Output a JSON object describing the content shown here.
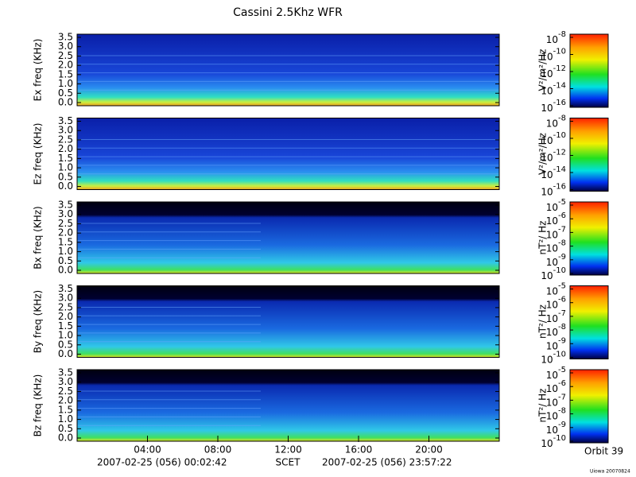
{
  "title": "Cassini 2.5Khz WFR",
  "panels": [
    {
      "ylabel": "Ex freq (KHz)",
      "yticks": [
        "0.0",
        "0.5",
        "1.0",
        "1.5",
        "2.0",
        "2.5",
        "3.0",
        "3.5"
      ],
      "unit": "V²/m²/Hz",
      "cticks": [
        {
          "base": "10",
          "exp": "-8"
        },
        {
          "base": "10",
          "exp": "-10"
        },
        {
          "base": "10",
          "exp": "-12"
        },
        {
          "base": "10",
          "exp": "-14"
        },
        {
          "base": "10",
          "exp": "-16"
        }
      ]
    },
    {
      "ylabel": "Ez freq (KHz)",
      "yticks": [
        "0.0",
        "0.5",
        "1.0",
        "1.5",
        "2.0",
        "2.5",
        "3.0",
        "3.5"
      ],
      "unit": "V²/m²/Hz",
      "cticks": [
        {
          "base": "10",
          "exp": "-8"
        },
        {
          "base": "10",
          "exp": "-10"
        },
        {
          "base": "10",
          "exp": "-12"
        },
        {
          "base": "10",
          "exp": "-14"
        },
        {
          "base": "10",
          "exp": "-16"
        }
      ]
    },
    {
      "ylabel": "Bx freq (KHz)",
      "yticks": [
        "0.0",
        "0.5",
        "1.0",
        "1.5",
        "2.0",
        "2.5",
        "3.0",
        "3.5"
      ],
      "unit": "nT²/ Hz",
      "cticks": [
        {
          "base": "10",
          "exp": "-5"
        },
        {
          "base": "10",
          "exp": "-6"
        },
        {
          "base": "10",
          "exp": "-7"
        },
        {
          "base": "10",
          "exp": "-8"
        },
        {
          "base": "10",
          "exp": "-9"
        },
        {
          "base": "10",
          "exp": "-10"
        }
      ]
    },
    {
      "ylabel": "By freq (KHz)",
      "yticks": [
        "0.0",
        "0.5",
        "1.0",
        "1.5",
        "2.0",
        "2.5",
        "3.0",
        "3.5"
      ],
      "unit": "nT²/ Hz",
      "cticks": [
        {
          "base": "10",
          "exp": "-5"
        },
        {
          "base": "10",
          "exp": "-6"
        },
        {
          "base": "10",
          "exp": "-7"
        },
        {
          "base": "10",
          "exp": "-8"
        },
        {
          "base": "10",
          "exp": "-9"
        },
        {
          "base": "10",
          "exp": "-10"
        }
      ]
    },
    {
      "ylabel": "Bz freq (KHz)",
      "yticks": [
        "0.0",
        "0.5",
        "1.0",
        "1.5",
        "2.0",
        "2.5",
        "3.0",
        "3.5"
      ],
      "unit": "nT²/ Hz",
      "cticks": [
        {
          "base": "10",
          "exp": "-5"
        },
        {
          "base": "10",
          "exp": "-6"
        },
        {
          "base": "10",
          "exp": "-7"
        },
        {
          "base": "10",
          "exp": "-8"
        },
        {
          "base": "10",
          "exp": "-9"
        },
        {
          "base": "10",
          "exp": "-10"
        }
      ]
    }
  ],
  "xticks": [
    "04:00",
    "08:00",
    "12:00",
    "16:00",
    "20:00"
  ],
  "footer": {
    "start": "2007-02-25 (056) 00:02:42",
    "axis": "SCET",
    "end": "2007-02-25 (056) 23:57:22"
  },
  "orbit": "Orbit 39",
  "credit": "Uiowa 20070824"
}
